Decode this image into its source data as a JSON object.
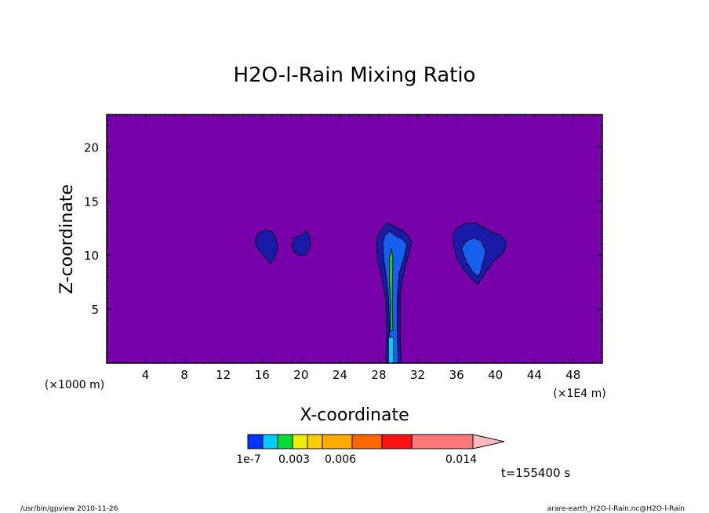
{
  "chart_data": {
    "type": "heatmap",
    "title": "H2O-l-Rain Mixing Ratio",
    "xlabel": "X-coordinate",
    "ylabel": "Z-coordinate",
    "x_unit": "(×1E4 m)",
    "y_unit": "(×1000 m)",
    "xlim": [
      0,
      51
    ],
    "ylim": [
      0,
      23
    ],
    "x_ticks": [
      4,
      8,
      12,
      16,
      20,
      24,
      28,
      32,
      36,
      40,
      44,
      48
    ],
    "y_ticks": [
      5,
      10,
      15,
      20
    ],
    "grid": false,
    "background_color": "#7700aa",
    "colorbar": {
      "labels": [
        "1e-7",
        "0.003",
        "0.006",
        "0.014"
      ],
      "colors": [
        "#0033ff",
        "#00ccff",
        "#00dd33",
        "#eeee00",
        "#ffcc00",
        "#ffaa00",
        "#ff6600",
        "#ff1111",
        "#ff7777",
        "#ffbbbb"
      ]
    },
    "regions": [
      {
        "level": 1,
        "color": "#1a1aaa",
        "points": [
          [
            15.3,
            11.3
          ],
          [
            15.5,
            11.9
          ],
          [
            16.3,
            12.3
          ],
          [
            17.0,
            12.2
          ],
          [
            17.4,
            11.6
          ],
          [
            17.6,
            10.6
          ],
          [
            17.2,
            9.6
          ],
          [
            16.8,
            9.2
          ],
          [
            16.4,
            9.7
          ],
          [
            15.8,
            10.3
          ],
          [
            15.4,
            10.8
          ]
        ]
      },
      {
        "level": 1,
        "color": "#1a1aaa",
        "points": [
          [
            19.0,
            10.9
          ],
          [
            19.3,
            11.6
          ],
          [
            20.1,
            11.9
          ],
          [
            20.5,
            12.3
          ],
          [
            20.9,
            11.7
          ],
          [
            21.0,
            10.9
          ],
          [
            20.5,
            10.0
          ],
          [
            19.8,
            10.0
          ],
          [
            19.3,
            10.3
          ]
        ]
      },
      {
        "level": 1,
        "color": "#1a1aaa",
        "points": [
          [
            27.8,
            10.6
          ],
          [
            27.8,
            11.6
          ],
          [
            28.3,
            12.4
          ],
          [
            28.9,
            13.0
          ],
          [
            29.7,
            12.6
          ],
          [
            30.4,
            12.3
          ],
          [
            31.0,
            11.8
          ],
          [
            31.4,
            11.2
          ],
          [
            31.1,
            10.2
          ],
          [
            30.6,
            8.5
          ],
          [
            30.2,
            6.5
          ],
          [
            30.2,
            4.0
          ],
          [
            30.2,
            2.0
          ],
          [
            30.3,
            0.0
          ],
          [
            28.7,
            0.0
          ],
          [
            28.8,
            2.0
          ],
          [
            28.8,
            4.0
          ],
          [
            28.7,
            6.0
          ],
          [
            28.3,
            8.0
          ],
          [
            27.9,
            9.4
          ]
        ]
      },
      {
        "level": 1,
        "color": "#1a1aaa",
        "points": [
          [
            35.6,
            11.6
          ],
          [
            35.9,
            12.4
          ],
          [
            36.8,
            12.9
          ],
          [
            37.9,
            13.0
          ],
          [
            38.7,
            12.6
          ],
          [
            39.7,
            12.1
          ],
          [
            40.6,
            11.8
          ],
          [
            41.2,
            11.1
          ],
          [
            40.8,
            10.2
          ],
          [
            39.8,
            9.4
          ],
          [
            39.0,
            8.4
          ],
          [
            38.2,
            7.3
          ],
          [
            37.5,
            7.8
          ],
          [
            36.6,
            8.8
          ],
          [
            35.9,
            10.0
          ]
        ]
      },
      {
        "level": 2,
        "color": "#1560ee",
        "points": [
          [
            28.4,
            11.0
          ],
          [
            28.6,
            11.8
          ],
          [
            29.1,
            12.2
          ],
          [
            29.7,
            11.8
          ],
          [
            30.4,
            11.5
          ],
          [
            30.9,
            11.0
          ],
          [
            30.6,
            9.8
          ],
          [
            30.1,
            8.3
          ],
          [
            29.9,
            6.0
          ],
          [
            29.9,
            3.0
          ],
          [
            30.0,
            0.0
          ],
          [
            29.0,
            0.0
          ],
          [
            29.1,
            3.0
          ],
          [
            29.0,
            6.0
          ],
          [
            28.7,
            8.4
          ],
          [
            28.5,
            9.6
          ]
        ]
      },
      {
        "level": 2,
        "color": "#1560ee",
        "points": [
          [
            36.5,
            10.6
          ],
          [
            37.0,
            11.3
          ],
          [
            37.8,
            11.6
          ],
          [
            38.5,
            11.3
          ],
          [
            39.0,
            10.4
          ],
          [
            38.7,
            9.2
          ],
          [
            38.3,
            8.0
          ],
          [
            37.7,
            8.4
          ],
          [
            37.0,
            9.4
          ]
        ]
      },
      {
        "level": 5,
        "color": "#00dd33",
        "points": [
          [
            29.1,
            9.8
          ],
          [
            29.3,
            10.6
          ],
          [
            29.45,
            9.6
          ],
          [
            29.4,
            7.0
          ],
          [
            29.4,
            5.0
          ],
          [
            29.45,
            3.0
          ],
          [
            29.2,
            3.0
          ],
          [
            29.2,
            5.5
          ],
          [
            29.1,
            7.5
          ]
        ]
      },
      {
        "level": 3,
        "color": "#00ccff",
        "points": [
          [
            29.0,
            2.4
          ],
          [
            29.5,
            2.4
          ],
          [
            29.5,
            0.0
          ],
          [
            29.0,
            0.0
          ]
        ]
      }
    ]
  },
  "footer": {
    "left": "/usr/bin/gpview   2010-11-26",
    "right": "arare-earth_H2O-l-Rain.nc@H2O-l-Rain",
    "time": "t=155400 s"
  }
}
